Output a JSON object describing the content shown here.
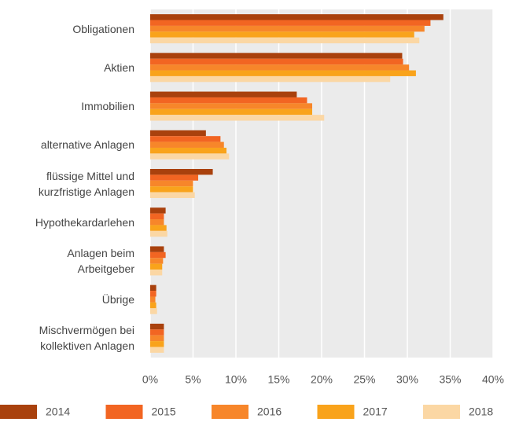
{
  "chart_data": {
    "type": "bar",
    "orientation": "horizontal",
    "categories": [
      "Obligationen",
      "Aktien",
      "Immobilien",
      "alternative Anlagen",
      "flüssige Mittel und\nkurzfristige Anlagen",
      "Hypothekardarlehen",
      "Anlagen beim\nArbeitgeber",
      "Übrige",
      "Mischvermögen bei\nkollektiven Anlagen"
    ],
    "series": [
      {
        "name": "2014",
        "color": "#a9410d",
        "values": [
          34.2,
          29.4,
          17.1,
          6.5,
          7.3,
          1.8,
          1.6,
          0.7,
          1.6
        ]
      },
      {
        "name": "2015",
        "color": "#f26522",
        "values": [
          32.7,
          29.5,
          18.3,
          8.2,
          5.6,
          1.6,
          1.8,
          0.7,
          1.6
        ]
      },
      {
        "name": "2016",
        "color": "#f7862a",
        "values": [
          32.0,
          30.2,
          18.9,
          8.6,
          5.0,
          1.6,
          1.5,
          0.6,
          1.6
        ]
      },
      {
        "name": "2017",
        "color": "#f9a31b",
        "values": [
          30.8,
          31.0,
          18.9,
          8.9,
          5.0,
          1.9,
          1.4,
          0.7,
          1.6
        ]
      },
      {
        "name": "2018",
        "color": "#fbd7a4",
        "values": [
          31.4,
          28.0,
          20.3,
          9.2,
          5.2,
          2.0,
          1.4,
          0.8,
          1.6
        ]
      }
    ],
    "xlim": [
      0,
      40
    ],
    "xticks": [
      {
        "value": 0,
        "label": "0%"
      },
      {
        "value": 5,
        "label": "5%"
      },
      {
        "value": 10,
        "label": "10%"
      },
      {
        "value": 15,
        "label": "15%"
      },
      {
        "value": 20,
        "label": "20%"
      },
      {
        "value": 25,
        "label": "25%"
      },
      {
        "value": 30,
        "label": "30%"
      },
      {
        "value": 35,
        "label": "35%"
      },
      {
        "value": 40,
        "label": "40%"
      }
    ],
    "grid": true,
    "legend": "bottom"
  }
}
